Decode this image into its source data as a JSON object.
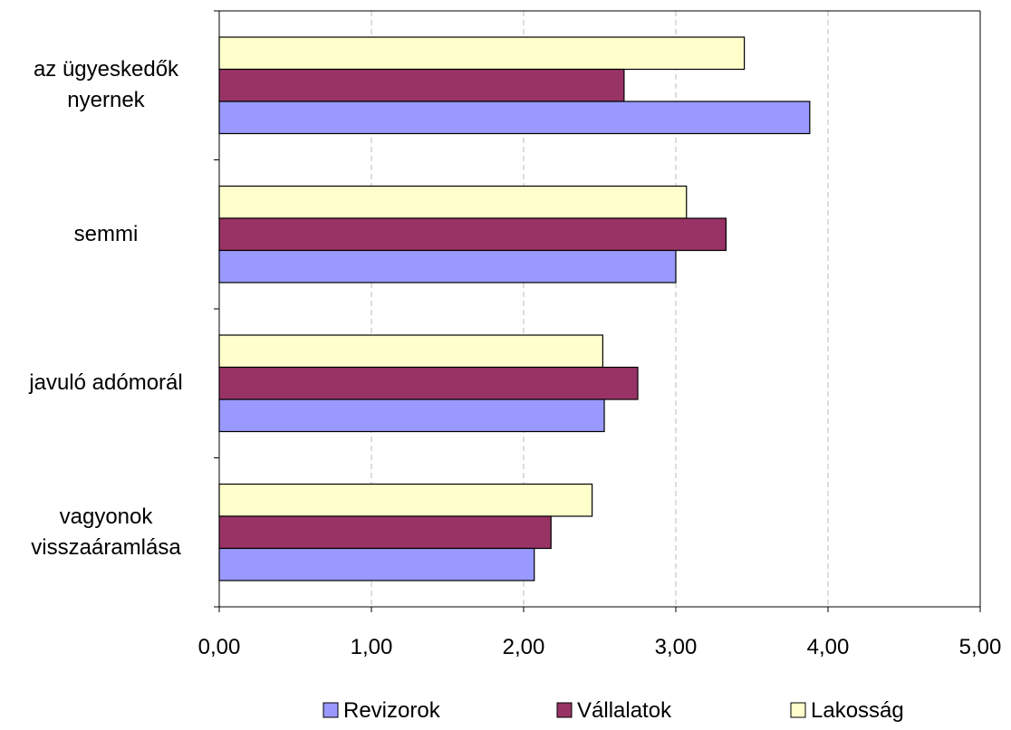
{
  "chart_data": {
    "type": "barh",
    "categories": [
      "az ügyeskedők nyernek",
      "semmi",
      "javuló adómorál",
      "vagyonok visszaáramlása"
    ],
    "series": [
      {
        "name": "Revizorok",
        "color": "#9999ff",
        "values": [
          3.88,
          3.0,
          2.53,
          2.07
        ]
      },
      {
        "name": "Vállalatok",
        "color": "#993366",
        "values": [
          2.66,
          3.33,
          2.75,
          2.18
        ]
      },
      {
        "name": "Lakosság",
        "color": "#ffffcc",
        "values": [
          3.45,
          3.07,
          2.52,
          2.45
        ]
      }
    ],
    "xlim": [
      0,
      5
    ],
    "xticks": [
      {
        "value": 0,
        "label": "0,00"
      },
      {
        "value": 1,
        "label": "1,00"
      },
      {
        "value": 2,
        "label": "2,00"
      },
      {
        "value": 3,
        "label": "3,00"
      },
      {
        "value": 4,
        "label": "4,00"
      },
      {
        "value": 5,
        "label": "5,00"
      }
    ],
    "grid": true,
    "legend": "bottom"
  }
}
